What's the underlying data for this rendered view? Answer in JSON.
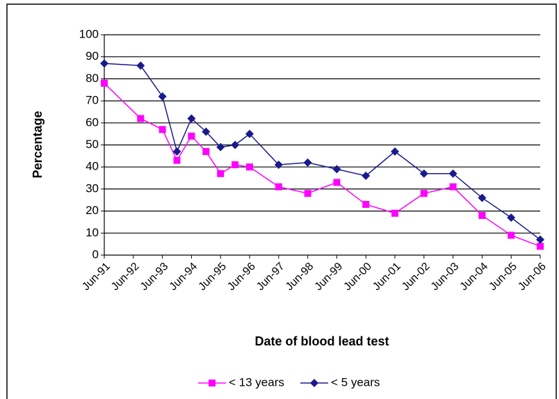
{
  "chart_data": {
    "type": "line",
    "y_label": "Percentage",
    "x_label": "Date of blood lead test",
    "x": [
      "Jun-91",
      "Sep-92",
      "Jun-93",
      "Dec-93",
      "Jun-94",
      "Dec-94",
      "Jun-95",
      "Dec-95",
      "Jun-96",
      "Jun-97",
      "Jun-98",
      "Jun-99",
      "Jun-00",
      "Jun-01",
      "Jun-02",
      "Jun-03",
      "Jun-04",
      "Jun-05",
      "Jun-06"
    ],
    "series": [
      {
        "name": "< 13 years",
        "color": "#ff00ff",
        "marker": "square",
        "values": [
          78,
          62,
          57,
          43,
          54,
          47,
          37,
          41,
          40,
          31,
          28,
          33,
          23,
          19,
          28,
          31,
          18,
          9,
          4
        ]
      },
      {
        "name": "< 5 years",
        "color": "#1a1a8c",
        "marker": "diamond",
        "values": [
          87,
          86,
          72,
          47,
          62,
          56,
          49,
          50,
          55,
          41,
          42,
          39,
          36,
          47,
          37,
          37,
          26,
          17,
          7
        ]
      }
    ],
    "xlim": [
      "Jun-91",
      "Jun-06"
    ],
    "xticks": [
      "Jun-91",
      "Jun-92",
      "Jun-93",
      "Jun-94",
      "Jun-95",
      "Jun-96",
      "Jun-97",
      "Jun-98",
      "Jun-99",
      "Jun-00",
      "Jun-01",
      "Jun-02",
      "Jun-03",
      "Jun-04",
      "Jun-05",
      "Jun-06"
    ],
    "ylim": [
      0,
      100
    ],
    "yticks": [
      0,
      10,
      20,
      30,
      40,
      50,
      60,
      70,
      80,
      90,
      100
    ],
    "grid": true,
    "legend": "bottom"
  }
}
